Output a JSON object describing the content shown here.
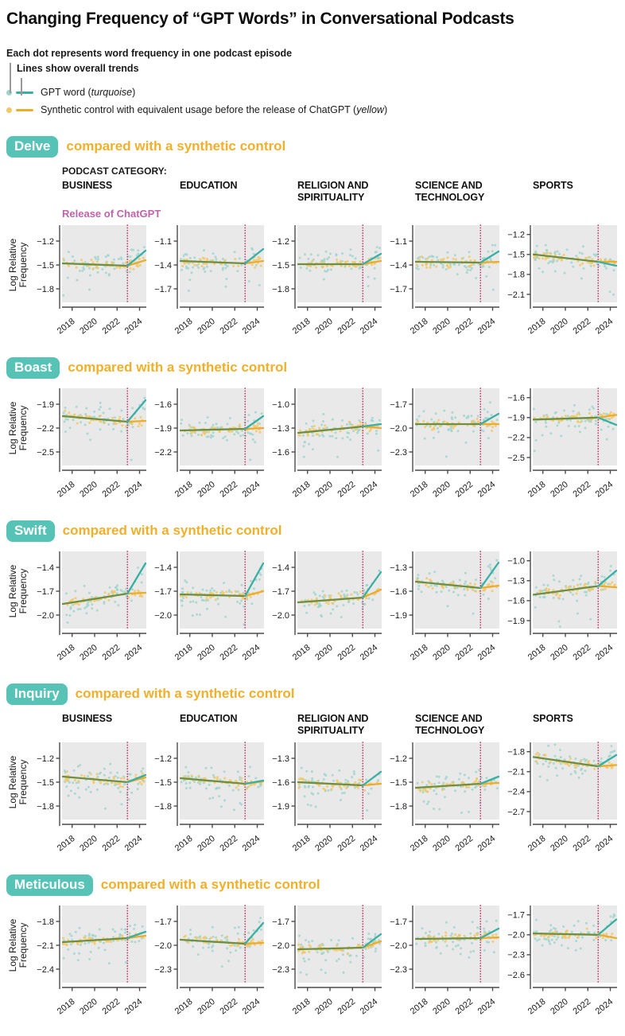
{
  "title": "Changing Frequency of “GPT Words” in Conversational Podcasts",
  "legend": {
    "dots_note": "Each dot represents word frequency in one podcast episode",
    "lines_note": "Lines show overall trends",
    "gpt": {
      "pre": "GPT word (",
      "italic": "turquoise",
      "post": ")"
    },
    "control": {
      "pre": "Synthetic control with equivalent usage before the release of ChatGPT (",
      "italic": "yellow",
      "post": ")"
    }
  },
  "labels": {
    "podcast_category": "PODCAST CATEGORY:",
    "release": "Release of ChatGPT",
    "y_axis_line1": "Log Relative",
    "y_axis_line2": "Frequency",
    "section_subtitle": "compared with a synthetic control"
  },
  "colors": {
    "gpt_line": "#39b0a3",
    "gpt_dot": "#9ed3cc",
    "control_line": "#edac2c",
    "control_dot": "#f2c765",
    "pre_trend": "#6f8e3f",
    "release_line": "#c23b6e",
    "release_text": "#bf63ad",
    "panel_bg": "#e9e9e9",
    "axis": "#4a4a4a",
    "badge_bg": "#57c3b6",
    "subtitle": "#f0b02c"
  },
  "chart_data": {
    "type": "scatter",
    "title": "Changing Frequency of “GPT Words” in Conversational Podcasts",
    "ylabel": "Log Relative Frequency",
    "x_domain": [
      2017.1,
      2024.6
    ],
    "x_ticks": [
      2018,
      2020,
      2022,
      2024
    ],
    "release_x": 2022.92,
    "categories": [
      "BUSINESS",
      "EDUCATION",
      "RELIGION AND SPIRITUALITY",
      "SCIENCE AND TECHNOLOGY",
      "SPORTS"
    ],
    "series_names": [
      "GPT word",
      "Synthetic control"
    ],
    "scatter_style": {
      "n_gpt": 62,
      "n_control": 48,
      "sd_gpt": 0.085,
      "sd_control": 0.032,
      "note": "dots are episode samples jittered around trend lines"
    },
    "sections": [
      {
        "word": "Delve",
        "show_category_headers": true,
        "show_podcast_label": true,
        "show_release_label": true,
        "panels": [
          {
            "yticks": [
              -1.2,
              -1.5,
              -1.8
            ],
            "pre": [
              -1.48,
              -1.51
            ],
            "gpt_end": -1.32,
            "control_end": -1.44
          },
          {
            "yticks": [
              -1.1,
              -1.4,
              -1.7
            ],
            "pre": [
              -1.35,
              -1.38
            ],
            "gpt_end": -1.2,
            "control_end": -1.35
          },
          {
            "yticks": [
              -1.2,
              -1.5,
              -1.8
            ],
            "pre": [
              -1.49,
              -1.49
            ],
            "gpt_end": -1.36,
            "control_end": -1.45
          },
          {
            "yticks": [
              -1.1,
              -1.4,
              -1.7
            ],
            "pre": [
              -1.36,
              -1.37
            ],
            "gpt_end": -1.23,
            "control_end": -1.36
          },
          {
            "yticks": [
              -1.2,
              -1.5,
              -1.8,
              -2.1
            ],
            "pre": [
              -1.5,
              -1.61
            ],
            "gpt_end": -1.67,
            "control_end": -1.61
          }
        ]
      },
      {
        "word": "Boast",
        "show_category_headers": false,
        "show_podcast_label": false,
        "show_release_label": false,
        "panels": [
          {
            "yticks": [
              -1.9,
              -2.2,
              -2.5
            ],
            "pre": [
              -2.05,
              -2.12
            ],
            "gpt_end": -1.85,
            "control_end": -2.11
          },
          {
            "yticks": [
              -1.6,
              -1.9,
              -2.2
            ],
            "pre": [
              -1.93,
              -1.91
            ],
            "gpt_end": -1.75,
            "control_end": -1.9
          },
          {
            "yticks": [
              -1.0,
              -1.3,
              -1.6
            ],
            "pre": [
              -1.36,
              -1.28
            ],
            "gpt_end": -1.25,
            "control_end": -1.3
          },
          {
            "yticks": [
              -1.7,
              -2.0,
              -2.3
            ],
            "pre": [
              -1.95,
              -1.95
            ],
            "gpt_end": -1.82,
            "control_end": -1.95
          },
          {
            "yticks": [
              -1.6,
              -1.9,
              -2.2,
              -2.5
            ],
            "pre": [
              -1.93,
              -1.9
            ],
            "gpt_end": -2.01,
            "control_end": -1.86
          }
        ]
      },
      {
        "word": "Swift",
        "show_category_headers": false,
        "show_podcast_label": false,
        "show_release_label": false,
        "panels": [
          {
            "yticks": [
              -1.4,
              -1.7,
              -2.0
            ],
            "pre": [
              -1.86,
              -1.73
            ],
            "gpt_end": -1.35,
            "control_end": -1.72
          },
          {
            "yticks": [
              -1.4,
              -1.7,
              -2.0
            ],
            "pre": [
              -1.74,
              -1.76
            ],
            "gpt_end": -1.35,
            "control_end": -1.7
          },
          {
            "yticks": [
              -1.4,
              -1.7,
              -2.0
            ],
            "pre": [
              -1.84,
              -1.78
            ],
            "gpt_end": -1.46,
            "control_end": -1.68
          },
          {
            "yticks": [
              -1.3,
              -1.6,
              -1.9
            ],
            "pre": [
              -1.48,
              -1.56
            ],
            "gpt_end": -1.24,
            "control_end": -1.53
          },
          {
            "yticks": [
              -1.0,
              -1.3,
              -1.6,
              -1.9
            ],
            "pre": [
              -1.51,
              -1.38
            ],
            "gpt_end": -1.15,
            "control_end": -1.4
          }
        ]
      },
      {
        "word": "Inquiry",
        "show_category_headers": true,
        "show_podcast_label": false,
        "show_release_label": false,
        "panels": [
          {
            "yticks": [
              -1.2,
              -1.5,
              -1.8
            ],
            "pre": [
              -1.43,
              -1.5
            ],
            "gpt_end": -1.41,
            "control_end": -1.44
          },
          {
            "yticks": [
              -1.2,
              -1.5,
              -1.8
            ],
            "pre": [
              -1.45,
              -1.52
            ],
            "gpt_end": -1.48,
            "control_end": -1.49
          },
          {
            "yticks": [
              -1.3,
              -1.6,
              -1.9
            ],
            "pre": [
              -1.6,
              -1.64
            ],
            "gpt_end": -1.47,
            "control_end": -1.62
          },
          {
            "yticks": [
              -1.2,
              -1.5,
              -1.8
            ],
            "pre": [
              -1.57,
              -1.52
            ],
            "gpt_end": -1.43,
            "control_end": -1.51
          },
          {
            "yticks": [
              -1.8,
              -2.1,
              -2.4,
              -2.7
            ],
            "pre": [
              -1.88,
              -2.02
            ],
            "gpt_end": -1.85,
            "control_end": -2.0
          }
        ]
      },
      {
        "word": "Meticulous",
        "show_category_headers": false,
        "show_podcast_label": false,
        "show_release_label": false,
        "panels": [
          {
            "yticks": [
              -1.8,
              -2.1,
              -2.4
            ],
            "pre": [
              -2.06,
              -2.01
            ],
            "gpt_end": -1.93,
            "control_end": -1.98
          },
          {
            "yticks": [
              -1.7,
              -2.0,
              -2.3
            ],
            "pre": [
              -1.93,
              -1.98
            ],
            "gpt_end": -1.72,
            "control_end": -1.97
          },
          {
            "yticks": [
              -1.7,
              -2.0,
              -2.3
            ],
            "pre": [
              -2.05,
              -2.03
            ],
            "gpt_end": -1.86,
            "control_end": -1.95
          },
          {
            "yticks": [
              -1.7,
              -2.0,
              -2.3
            ],
            "pre": [
              -1.92,
              -1.91
            ],
            "gpt_end": -1.79,
            "control_end": -1.9
          },
          {
            "yticks": [
              -1.7,
              -2.0,
              -2.3,
              -2.6
            ],
            "pre": [
              -1.98,
              -2.0
            ],
            "gpt_end": -1.77,
            "control_end": -2.05
          }
        ]
      }
    ]
  }
}
